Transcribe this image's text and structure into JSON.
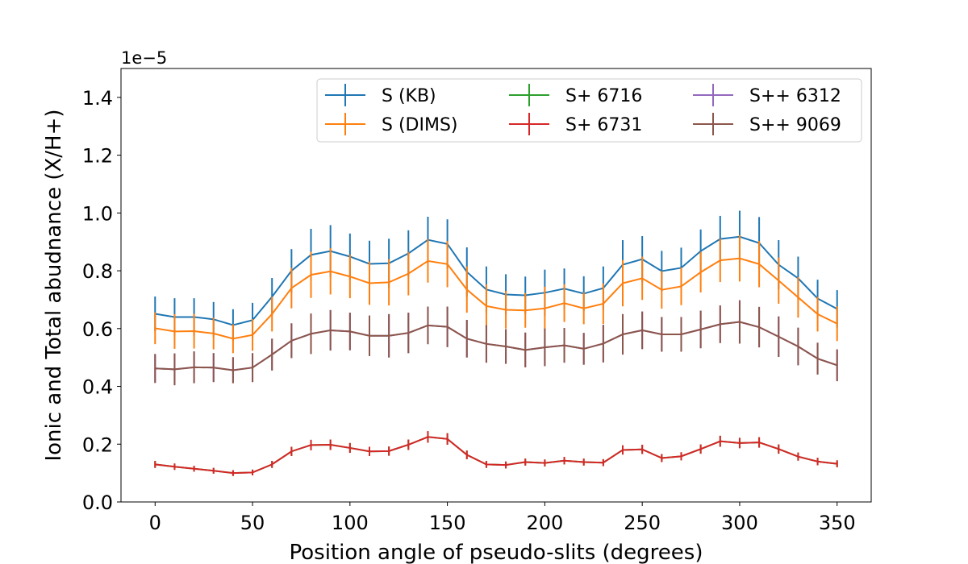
{
  "chart_data": {
    "type": "errorbar_line",
    "y_offset_label": "1e−5",
    "xlabel": "Position angle of pseudo-slits (degrees)",
    "ylabel": "Ionic and Total abudnance (X/H+)",
    "x": [
      0,
      10,
      20,
      30,
      40,
      50,
      60,
      70,
      80,
      90,
      100,
      110,
      120,
      130,
      140,
      150,
      160,
      170,
      180,
      190,
      200,
      210,
      220,
      230,
      240,
      250,
      260,
      270,
      280,
      290,
      300,
      310,
      320,
      330,
      340,
      350
    ],
    "xlim": [
      -17.5,
      367.5
    ],
    "xticks": [
      0,
      50,
      100,
      150,
      200,
      250,
      300,
      350
    ],
    "ylim": [
      0,
      1.5
    ],
    "yticks": [
      {
        "value": 0,
        "label": "0.0"
      },
      0.2,
      0.4,
      0.6,
      0.8,
      {
        "value": 1,
        "label": "1.0"
      },
      1.2,
      1.4
    ],
    "legend_loc": "upper right",
    "legend_columns": 3,
    "series": [
      {
        "name": "S (KB)",
        "color": "#1f77b4",
        "values": [
          0.651,
          0.64,
          0.64,
          0.632,
          0.612,
          0.629,
          0.71,
          0.8,
          0.855,
          0.868,
          0.849,
          0.824,
          0.826,
          0.86,
          0.907,
          0.893,
          0.796,
          0.735,
          0.718,
          0.715,
          0.724,
          0.738,
          0.721,
          0.74,
          0.821,
          0.84,
          0.799,
          0.81,
          0.868,
          0.91,
          0.918,
          0.896,
          0.821,
          0.774,
          0.704,
          0.668
        ],
        "errors": [
          0.06,
          0.065,
          0.065,
          0.06,
          0.055,
          0.06,
          0.065,
          0.075,
          0.09,
          0.09,
          0.08,
          0.08,
          0.085,
          0.08,
          0.08,
          0.085,
          0.085,
          0.08,
          0.07,
          0.065,
          0.08,
          0.07,
          0.06,
          0.075,
          0.085,
          0.08,
          0.07,
          0.07,
          0.075,
          0.08,
          0.09,
          0.09,
          0.085,
          0.075,
          0.065,
          0.065
        ]
      },
      {
        "name": "S (DIMS)",
        "color": "#ff7f0e",
        "values": [
          0.601,
          0.59,
          0.591,
          0.583,
          0.565,
          0.578,
          0.65,
          0.74,
          0.786,
          0.798,
          0.78,
          0.757,
          0.76,
          0.79,
          0.834,
          0.823,
          0.735,
          0.678,
          0.665,
          0.663,
          0.67,
          0.688,
          0.67,
          0.686,
          0.757,
          0.774,
          0.734,
          0.746,
          0.795,
          0.836,
          0.843,
          0.823,
          0.766,
          0.708,
          0.65,
          0.617
        ],
        "errors": [
          0.055,
          0.06,
          0.06,
          0.055,
          0.05,
          0.055,
          0.06,
          0.07,
          0.08,
          0.08,
          0.075,
          0.075,
          0.08,
          0.075,
          0.075,
          0.08,
          0.08,
          0.075,
          0.065,
          0.06,
          0.075,
          0.065,
          0.055,
          0.07,
          0.08,
          0.075,
          0.065,
          0.065,
          0.07,
          0.075,
          0.08,
          0.08,
          0.08,
          0.07,
          0.06,
          0.06
        ]
      },
      {
        "name": "S+ 6716",
        "color": "#2ca02c",
        "values": [
          0.13,
          0.122,
          0.115,
          0.108,
          0.1,
          0.102,
          0.13,
          0.175,
          0.197,
          0.198,
          0.187,
          0.175,
          0.176,
          0.198,
          0.225,
          0.218,
          0.163,
          0.13,
          0.128,
          0.138,
          0.135,
          0.143,
          0.138,
          0.136,
          0.18,
          0.182,
          0.152,
          0.158,
          0.183,
          0.21,
          0.204,
          0.206,
          0.183,
          0.157,
          0.14,
          0.132
        ],
        "errors": [
          0.012,
          0.011,
          0.01,
          0.01,
          0.01,
          0.01,
          0.012,
          0.016,
          0.018,
          0.018,
          0.017,
          0.016,
          0.016,
          0.018,
          0.02,
          0.02,
          0.015,
          0.012,
          0.012,
          0.012,
          0.012,
          0.013,
          0.012,
          0.012,
          0.016,
          0.016,
          0.014,
          0.014,
          0.016,
          0.019,
          0.018,
          0.018,
          0.016,
          0.014,
          0.013,
          0.012
        ]
      },
      {
        "name": "S+ 6731",
        "color": "#d62728",
        "values": [
          0.13,
          0.122,
          0.115,
          0.108,
          0.1,
          0.102,
          0.13,
          0.175,
          0.197,
          0.198,
          0.187,
          0.175,
          0.176,
          0.198,
          0.225,
          0.218,
          0.163,
          0.13,
          0.128,
          0.138,
          0.135,
          0.143,
          0.138,
          0.136,
          0.18,
          0.182,
          0.152,
          0.158,
          0.183,
          0.21,
          0.204,
          0.206,
          0.183,
          0.157,
          0.14,
          0.132
        ],
        "errors": [
          0.012,
          0.011,
          0.01,
          0.01,
          0.01,
          0.01,
          0.012,
          0.016,
          0.018,
          0.018,
          0.017,
          0.016,
          0.016,
          0.018,
          0.02,
          0.02,
          0.015,
          0.012,
          0.012,
          0.012,
          0.012,
          0.013,
          0.012,
          0.012,
          0.016,
          0.016,
          0.014,
          0.014,
          0.016,
          0.019,
          0.018,
          0.018,
          0.016,
          0.014,
          0.013,
          0.012
        ]
      },
      {
        "name": "S++ 6312",
        "color": "#9467bd",
        "values": [
          0.462,
          0.459,
          0.466,
          0.465,
          0.456,
          0.465,
          0.51,
          0.558,
          0.582,
          0.594,
          0.59,
          0.575,
          0.575,
          0.585,
          0.611,
          0.606,
          0.565,
          0.547,
          0.538,
          0.526,
          0.535,
          0.542,
          0.53,
          0.548,
          0.58,
          0.594,
          0.58,
          0.58,
          0.597,
          0.615,
          0.623,
          0.605,
          0.572,
          0.538,
          0.496,
          0.473
        ],
        "errors": [
          0.05,
          0.055,
          0.055,
          0.05,
          0.045,
          0.05,
          0.055,
          0.06,
          0.07,
          0.07,
          0.065,
          0.07,
          0.075,
          0.07,
          0.065,
          0.07,
          0.065,
          0.065,
          0.06,
          0.06,
          0.065,
          0.06,
          0.055,
          0.065,
          0.07,
          0.065,
          0.06,
          0.06,
          0.065,
          0.065,
          0.075,
          0.07,
          0.07,
          0.065,
          0.055,
          0.055
        ]
      },
      {
        "name": "S++ 9069",
        "color": "#8c564b",
        "values": [
          0.462,
          0.459,
          0.466,
          0.465,
          0.456,
          0.465,
          0.51,
          0.558,
          0.582,
          0.594,
          0.59,
          0.575,
          0.575,
          0.585,
          0.611,
          0.606,
          0.565,
          0.547,
          0.538,
          0.526,
          0.535,
          0.542,
          0.53,
          0.548,
          0.58,
          0.594,
          0.58,
          0.58,
          0.597,
          0.615,
          0.623,
          0.605,
          0.572,
          0.538,
          0.496,
          0.473
        ],
        "errors": [
          0.05,
          0.055,
          0.055,
          0.05,
          0.045,
          0.05,
          0.055,
          0.06,
          0.07,
          0.07,
          0.065,
          0.07,
          0.075,
          0.07,
          0.065,
          0.07,
          0.065,
          0.065,
          0.06,
          0.06,
          0.065,
          0.06,
          0.055,
          0.065,
          0.07,
          0.065,
          0.06,
          0.06,
          0.065,
          0.065,
          0.075,
          0.07,
          0.07,
          0.065,
          0.055,
          0.055
        ]
      }
    ]
  }
}
